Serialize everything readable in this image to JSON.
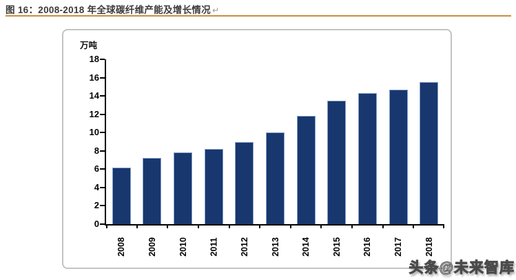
{
  "header": {
    "figure_caption": "图 16：2008-2018 年全球碳纤维产能及增长情况",
    "paragraph_mark": "↵",
    "rule_color": "#CB8C3F"
  },
  "watermark": {
    "text": "头条@未来智库"
  },
  "chart_data": {
    "type": "bar",
    "title": "",
    "unit_label": "万吨",
    "categories": [
      "2008",
      "2009",
      "2010",
      "2011",
      "2012",
      "2013",
      "2014",
      "2015",
      "2016",
      "2017",
      "2018"
    ],
    "values": [
      6.2,
      7.2,
      7.8,
      8.2,
      9.0,
      10.0,
      11.8,
      13.5,
      14.3,
      14.7,
      15.5
    ],
    "xlabel": "",
    "ylabel": "万吨",
    "ylim": [
      0,
      18
    ],
    "ytick_step": 2,
    "grid": false,
    "legend": "none",
    "bar_color": "#17376E",
    "bar_border_color": "#85A0C9",
    "axis_color": "#000000"
  }
}
